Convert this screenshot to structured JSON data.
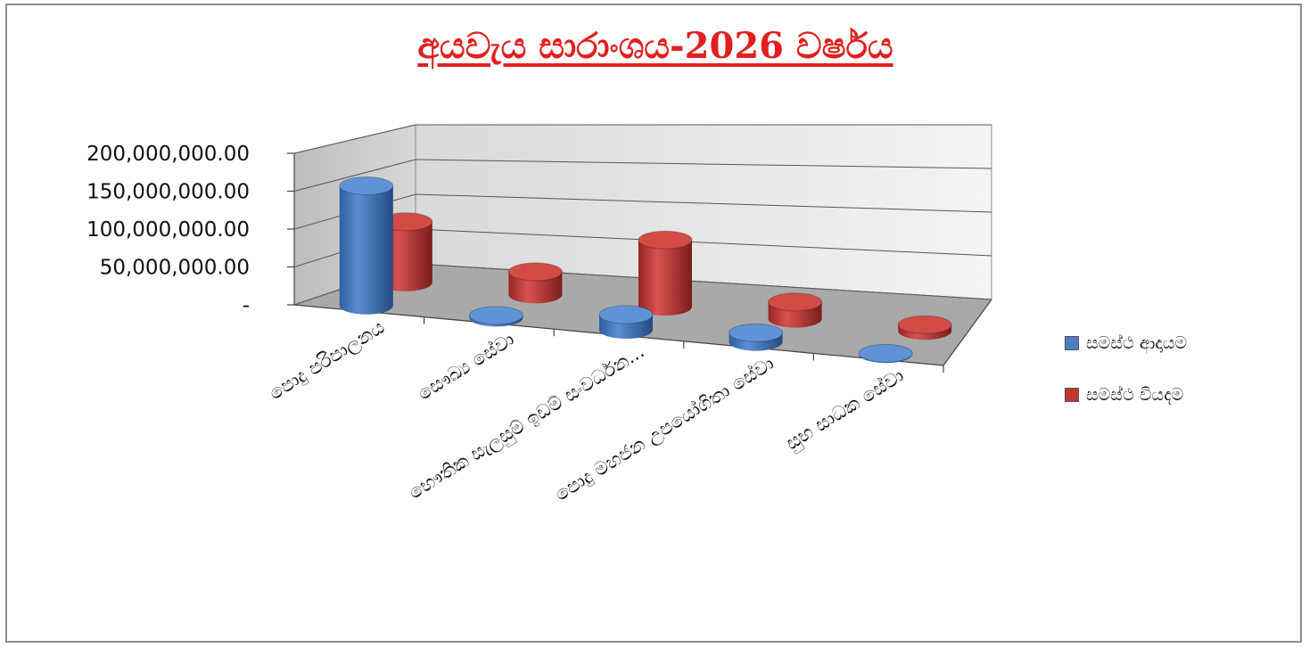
{
  "chart_data": {
    "type": "bar",
    "title": "අයවැය සාරාංශය-2026 වර්ෂය",
    "categories": [
      "පොදු පරිපාලනය",
      "සෞඛ්‍ය සේවා",
      "භෞතික සැලසුම් ඉඩම් සංවර්ධන...",
      "පොදු මහජන උපයෝගිතා සේවා",
      "සුභ සාධක සේවා"
    ],
    "series": [
      {
        "name": "සමස්ථ ආදායම",
        "color": "#4a7ebf",
        "values": [
          158000000,
          3000000,
          20000000,
          12000000,
          1000000
        ]
      },
      {
        "name": "සමස්ථ වියදම",
        "color": "#c0392b",
        "values": [
          80000000,
          30000000,
          88000000,
          22000000,
          8000000
        ]
      }
    ],
    "yticks": [
      "200,000,000.00",
      "150,000,000.00",
      "100,000,000.00",
      "50,000,000.00",
      "-"
    ],
    "ylim": [
      0,
      200000000
    ],
    "grid": true,
    "legend_position": "right",
    "style": "3d-cylinder"
  }
}
